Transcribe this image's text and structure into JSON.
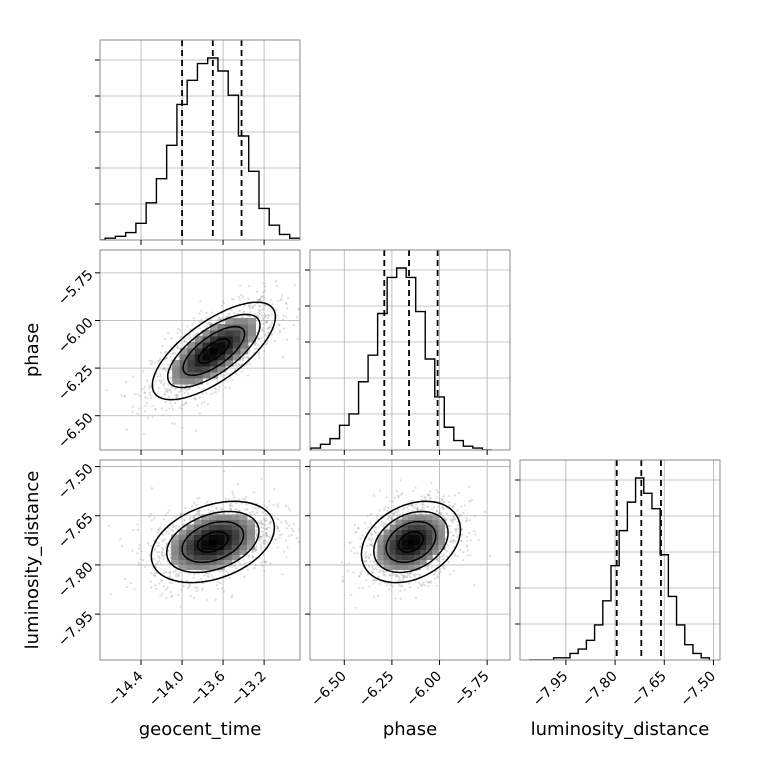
{
  "chart_data": {
    "type": "corner",
    "parameters": [
      "geocent_time",
      "phase",
      "luminosity_distance"
    ],
    "axis_labels": {
      "x": [
        "geocent_time",
        "phase",
        "luminosity_distance"
      ],
      "y": [
        "phase",
        "luminosity_distance"
      ]
    },
    "ranges": {
      "geocent_time": [
        -14.8,
        -12.85
      ],
      "phase": [
        -6.68,
        -5.63
      ],
      "luminosity_distance": [
        -8.09,
        -7.48
      ]
    },
    "ticks": {
      "geocent_time": [
        -14.4,
        -14.0,
        -13.6,
        -13.2
      ],
      "phase": [
        -6.5,
        -6.25,
        -6.0,
        -5.75
      ],
      "luminosity_distance": [
        -7.95,
        -7.8,
        -7.65,
        -7.5
      ]
    },
    "tick_labels": {
      "geocent_time": [
        "−14.4",
        "−14.0",
        "−13.6",
        "−13.2"
      ],
      "phase": [
        "−6.50",
        "−6.25",
        "−6.00",
        "−5.75"
      ],
      "luminosity_distance": [
        "−7.95",
        "−7.80",
        "−7.65",
        "−7.50"
      ]
    },
    "quantiles": {
      "geocent_time": [
        -14.0,
        -13.7,
        -13.42
      ],
      "phase": [
        -6.29,
        -6.16,
        -6.01
      ],
      "luminosity_distance": [
        -7.795,
        -7.72,
        -7.66
      ]
    },
    "histograms": {
      "geocent_time": {
        "x": [
          -14.8,
          -14.7,
          -14.6,
          -14.5,
          -14.4,
          -14.3,
          -14.2,
          -14.1,
          -14.0,
          -13.9,
          -13.8,
          -13.7,
          -13.6,
          -13.5,
          -13.4,
          -13.3,
          -13.2,
          -13.1,
          -13.0,
          -12.9
        ],
        "counts": [
          0,
          1,
          2,
          4,
          9,
          20,
          33,
          51,
          73,
          86,
          95,
          98,
          91,
          78,
          56,
          37,
          17,
          8,
          3,
          1
        ]
      },
      "phase": {
        "x": [
          -6.65,
          -6.6,
          -6.55,
          -6.5,
          -6.45,
          -6.4,
          -6.35,
          -6.3,
          -6.25,
          -6.2,
          -6.15,
          -6.1,
          -6.05,
          -6.0,
          -5.95,
          -5.9,
          -5.85,
          -5.8,
          -5.75
        ],
        "counts": [
          1,
          3,
          6,
          13,
          19,
          36,
          50,
          72,
          91,
          96,
          91,
          73,
          48,
          28,
          12,
          5,
          2,
          1,
          0
        ]
      },
      "luminosity_distance": {
        "x": [
          -8.05,
          -8.025,
          -8.0,
          -7.975,
          -7.95,
          -7.925,
          -7.9,
          -7.875,
          -7.85,
          -7.825,
          -7.8,
          -7.775,
          -7.75,
          -7.725,
          -7.7,
          -7.675,
          -7.65,
          -7.625,
          -7.6,
          -7.575,
          -7.55,
          -7.525
        ],
        "counts": [
          0,
          0,
          0,
          1,
          1,
          3,
          5,
          9,
          16,
          27,
          43,
          59,
          72,
          83,
          76,
          69,
          48,
          29,
          16,
          7,
          3,
          1
        ]
      }
    },
    "contour_2d": {
      "phase_vs_geocent_time": {
        "center": [
          -13.69,
          -6.16
        ],
        "sigma": [
          0.3,
          0.128
        ],
        "rho": 0.7,
        "levels_sigma": [
          0.5,
          1.0,
          1.5,
          2.0
        ]
      },
      "luminosity_distance_vs_geocent_time": {
        "center": [
          -13.7,
          -7.73
        ],
        "sigma": [
          0.3,
          0.062
        ],
        "rho": 0.35,
        "levels_sigma": [
          0.5,
          1.0,
          1.5,
          2.0
        ]
      },
      "luminosity_distance_vs_phase": {
        "center": [
          -6.15,
          -7.73
        ],
        "sigma": [
          0.13,
          0.062
        ],
        "rho": 0.3,
        "levels_sigma": [
          0.5,
          1.0,
          1.5,
          2.0
        ]
      }
    },
    "grid": true
  }
}
